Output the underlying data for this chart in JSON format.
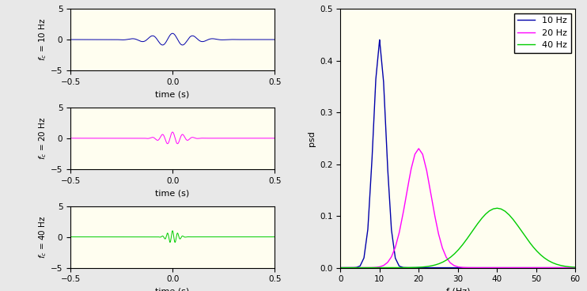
{
  "freqs": [
    10,
    20,
    40
  ],
  "colors_time": [
    "#0000AA",
    "#FF00FF",
    "#00CC00"
  ],
  "colors_freq": [
    "#0000AA",
    "#FF00FF",
    "#00CC00"
  ],
  "time_xlim": [
    -0.5,
    0.5
  ],
  "time_ylim": [
    -5,
    5
  ],
  "time_yticks": [
    -5,
    0,
    5
  ],
  "time_xlabel": "time (s)",
  "freq_xlim": [
    0,
    60
  ],
  "freq_ylim": [
    0,
    0.5
  ],
  "freq_yticks": [
    0,
    0.1,
    0.2,
    0.3,
    0.4,
    0.5
  ],
  "freq_xticks": [
    0,
    10,
    20,
    30,
    40,
    50,
    60
  ],
  "freq_xlabel": "f (Hz)",
  "freq_ylabel": "psd",
  "legend_labels": [
    "10 Hz",
    "20 Hz",
    "40 Hz"
  ],
  "fig_width": 7.42,
  "fig_height": 3.68,
  "dpi": 100,
  "bg_color": "#E8E8E8",
  "plot_bg": "#FFFEF0",
  "sigma_factors": [
    0.1,
    0.05,
    0.025
  ],
  "psd_peaks": [
    0.44,
    0.23,
    0.115
  ]
}
